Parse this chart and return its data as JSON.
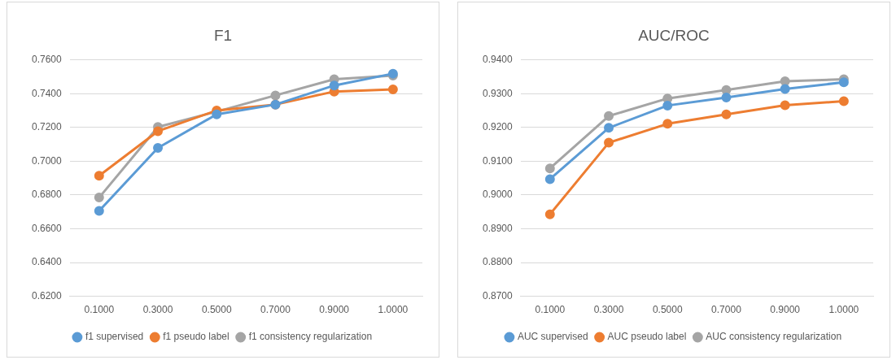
{
  "chart_data": [
    {
      "type": "line",
      "title": "F1",
      "categories": [
        "0.1000",
        "0.3000",
        "0.5000",
        "0.7000",
        "0.9000",
        "1.0000"
      ],
      "ylim": [
        0.62,
        0.76
      ],
      "yticks": [
        {
          "value": 0.62,
          "label": "0.6200"
        },
        {
          "value": 0.64,
          "label": "0.6400"
        },
        {
          "value": 0.66,
          "label": "0.6600"
        },
        {
          "value": 0.68,
          "label": "0.6800"
        },
        {
          "value": 0.7,
          "label": "0.7000"
        },
        {
          "value": 0.72,
          "label": "0.7200"
        },
        {
          "value": 0.74,
          "label": "0.7400"
        },
        {
          "value": 0.76,
          "label": "0.7600"
        }
      ],
      "grid": "y",
      "legend": "bottom",
      "marker": "circle",
      "series": [
        {
          "name": "f1 supervised",
          "color": "#5b9bd5",
          "values": [
            0.6706,
            0.7079,
            0.7278,
            0.7336,
            0.7449,
            0.7519
          ]
        },
        {
          "name": "f1 pseudo label",
          "color": "#ed7d31",
          "values": [
            0.6914,
            0.7178,
            0.7301,
            0.7336,
            0.7413,
            0.7426
          ]
        },
        {
          "name": "f1 consistency regularization",
          "color": "#a5a5a5",
          "values": [
            0.6785,
            0.7203,
            0.7294,
            0.739,
            0.7486,
            0.7507
          ]
        }
      ]
    },
    {
      "type": "line",
      "title": "AUC/ROC",
      "categories": [
        "0.1000",
        "0.3000",
        "0.5000",
        "0.7000",
        "0.9000",
        "1.0000"
      ],
      "ylim": [
        0.87,
        0.94
      ],
      "yticks": [
        {
          "value": 0.87,
          "label": "0.8700"
        },
        {
          "value": 0.88,
          "label": "0.8800"
        },
        {
          "value": 0.89,
          "label": "0.8900"
        },
        {
          "value": 0.9,
          "label": "0.9000"
        },
        {
          "value": 0.91,
          "label": "0.9100"
        },
        {
          "value": 0.92,
          "label": "0.9200"
        },
        {
          "value": 0.93,
          "label": "0.9300"
        },
        {
          "value": 0.94,
          "label": "0.9400"
        }
      ],
      "grid": "y",
      "legend": "bottom",
      "marker": "circle",
      "series": [
        {
          "name": "AUC supervised",
          "color": "#5b9bd5",
          "values": [
            0.9047,
            0.9199,
            0.9265,
            0.9289,
            0.9314,
            0.9334
          ]
        },
        {
          "name": "AUC pseudo label",
          "color": "#ed7d31",
          "values": [
            0.8943,
            0.9155,
            0.9211,
            0.9239,
            0.9266,
            0.9278
          ]
        },
        {
          "name": "AUC consistency regularization",
          "color": "#a5a5a5",
          "values": [
            0.9079,
            0.9234,
            0.9286,
            0.9311,
            0.9337,
            0.9343
          ]
        }
      ]
    }
  ]
}
